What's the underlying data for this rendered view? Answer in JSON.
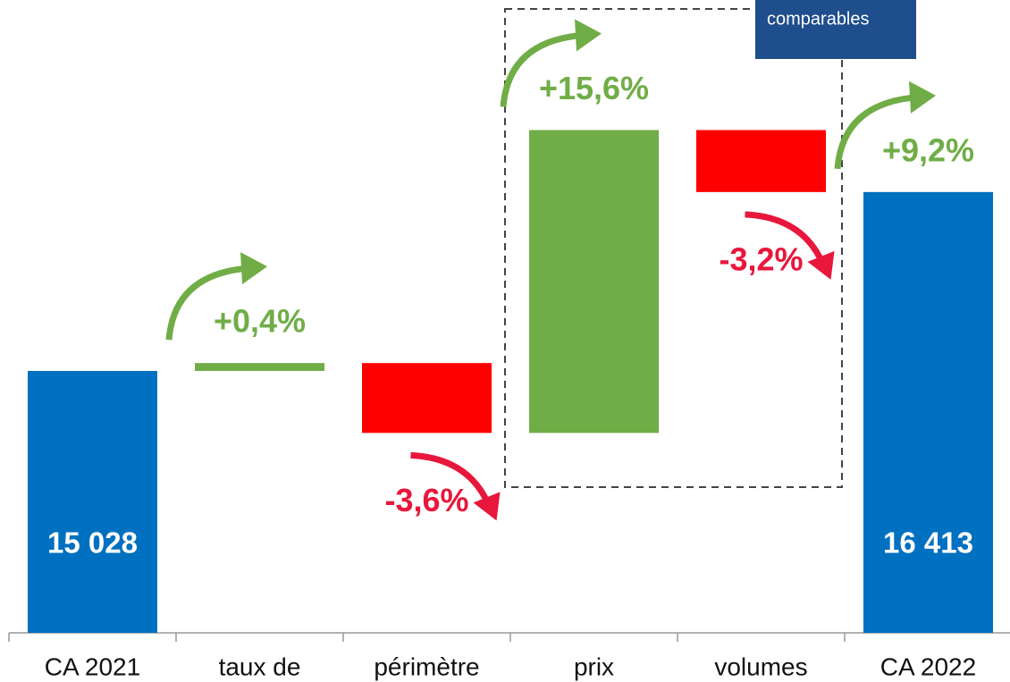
{
  "chart_data": {
    "type": "waterfall",
    "categories": [
      "CA 2021",
      "taux de",
      "périmètre",
      "prix",
      "volumes",
      "CA 2022"
    ],
    "values": [
      15028,
      61,
      -541,
      2345,
      -480,
      16413
    ],
    "totals": [
      true,
      false,
      false,
      false,
      false,
      true
    ],
    "value_labels": [
      "15 028",
      null,
      null,
      null,
      null,
      "16 413"
    ],
    "change_labels": [
      null,
      "+0,4%",
      "-3,6%",
      "+15,6%",
      "-3,2%",
      "+9,2%"
    ],
    "colors": {
      "total": "#0070c0",
      "increase": "#70ad47",
      "decrease": "#ff0000",
      "increase_label": "#70ad47",
      "decrease_label": "#e8173c"
    },
    "ylim": [
      13000,
      17900
    ],
    "annotation": "comparables"
  }
}
